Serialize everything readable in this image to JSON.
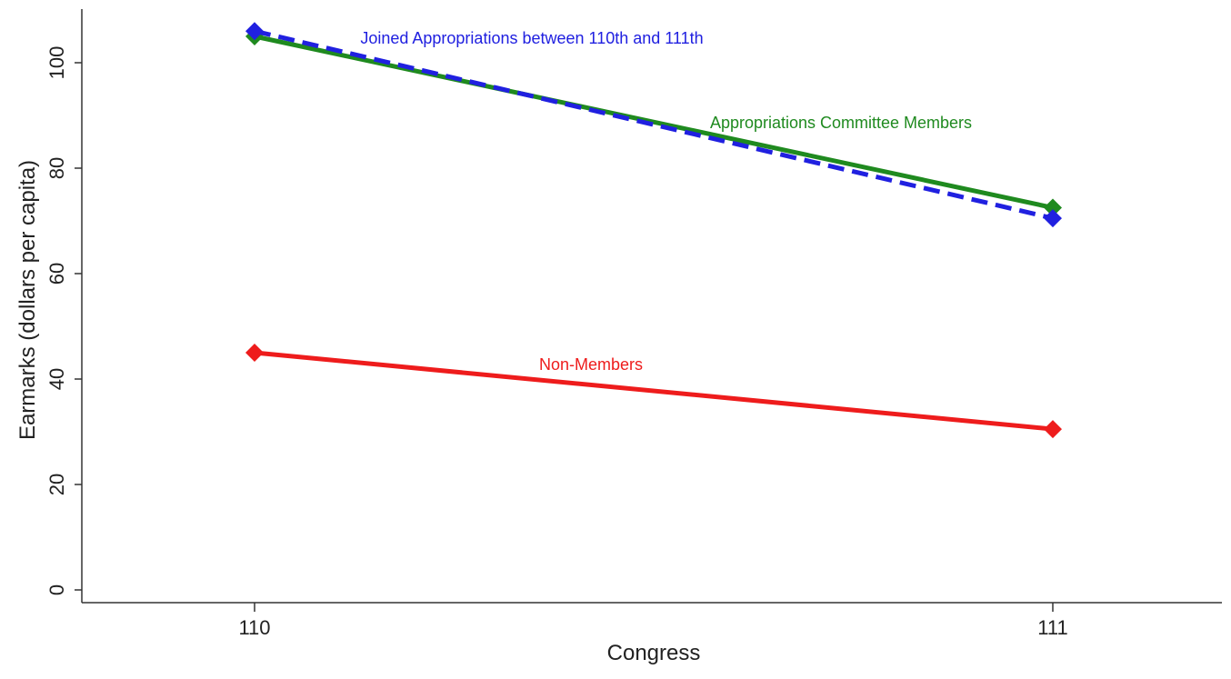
{
  "chart_data": {
    "type": "line",
    "title": "",
    "xlabel": "Congress",
    "ylabel": "Earmarks (dollars per capita)",
    "x": [
      "110",
      "111"
    ],
    "ylim": [
      0,
      105
    ],
    "yticks": [
      "0",
      "20",
      "40",
      "60",
      "80",
      "100"
    ],
    "grid": false,
    "legend": "none",
    "series": [
      {
        "name": "Joined Appropriations between 110th and 111th",
        "values": [
          106,
          70.5
        ],
        "color": "#2020e0",
        "style": "dashed",
        "marker": "diamond"
      },
      {
        "name": "Appropriations Committee Members",
        "values": [
          105,
          72.5
        ],
        "color": "#1f8a1f",
        "style": "solid",
        "marker": "diamond"
      },
      {
        "name": "Non-Members",
        "values": [
          45,
          30.5
        ],
        "color": "#ee1c1c",
        "style": "solid",
        "marker": "diamond"
      }
    ]
  }
}
